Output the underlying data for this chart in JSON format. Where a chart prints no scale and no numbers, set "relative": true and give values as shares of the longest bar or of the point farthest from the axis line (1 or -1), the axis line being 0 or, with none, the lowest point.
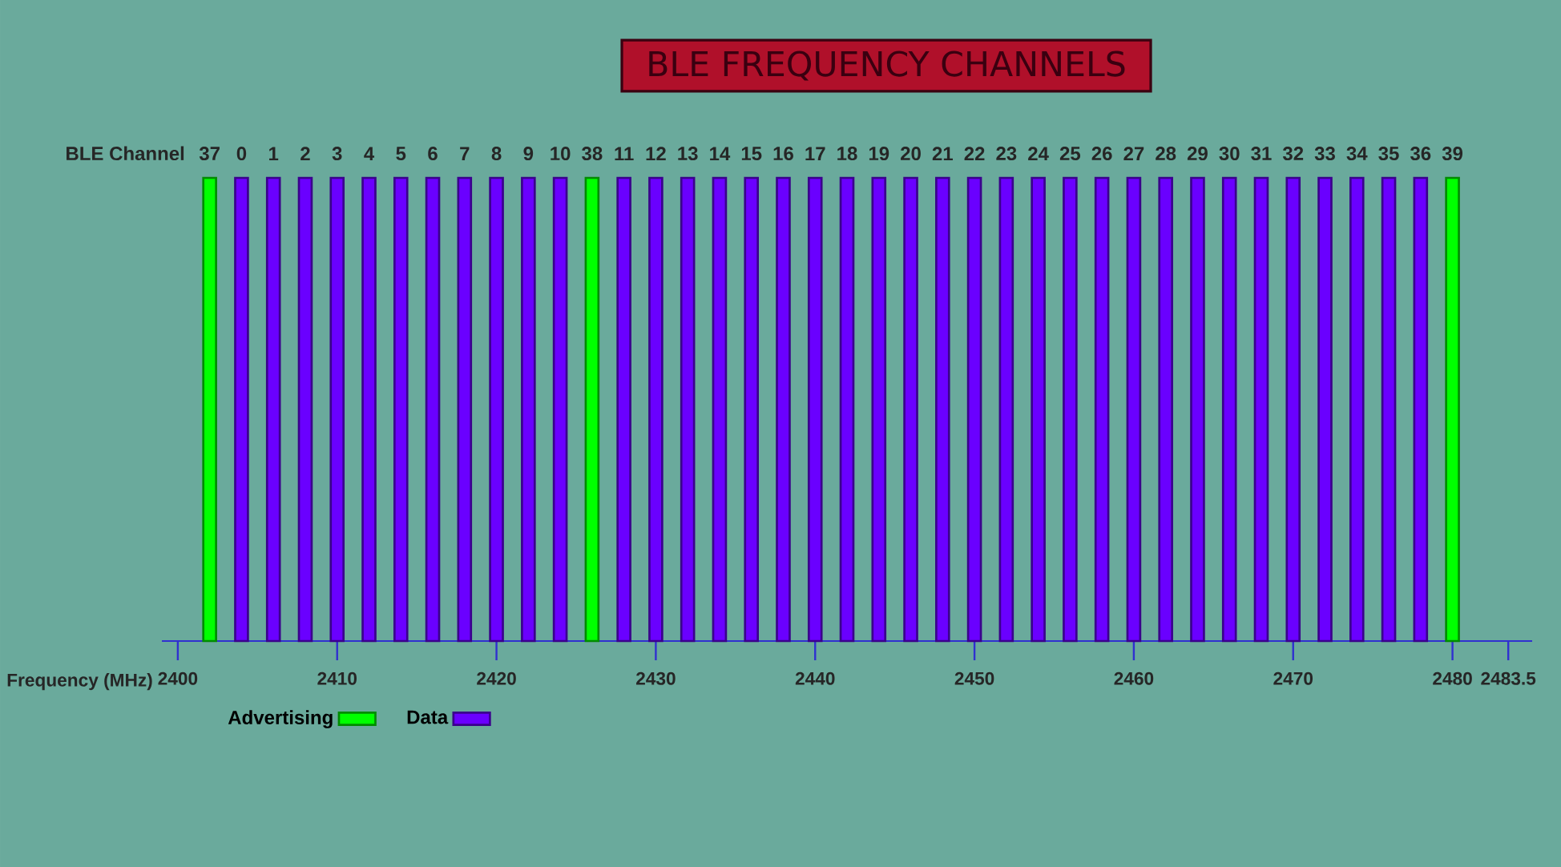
{
  "chart_data": {
    "type": "bar",
    "title": "BLE FREQUENCY CHANNELS",
    "xlabel": "Frequency (MHz)",
    "relative": true,
    "legend": "bottom left",
    "xlim": [
      2399,
      2485
    ],
    "xticks": [
      2400,
      2410,
      2420,
      2430,
      2440,
      2450,
      2460,
      2470,
      2480,
      2483.5
    ],
    "annotations": [
      "BLE Channel",
      {
        "text": "37",
        "x": 2402,
        "y": 1
      },
      {
        "text": "0",
        "x": 2404,
        "y": 1
      },
      {
        "text": "1",
        "x": 2406,
        "y": 1
      },
      {
        "text": "2",
        "x": 2408,
        "y": 1
      },
      {
        "text": "3",
        "x": 2410,
        "y": 1
      },
      {
        "text": "4",
        "x": 2412,
        "y": 1
      },
      {
        "text": "5",
        "x": 2414,
        "y": 1
      },
      {
        "text": "6",
        "x": 2416,
        "y": 1
      },
      {
        "text": "7",
        "x": 2418,
        "y": 1
      },
      {
        "text": "8",
        "x": 2420,
        "y": 1
      },
      {
        "text": "9",
        "x": 2422,
        "y": 1
      },
      {
        "text": "10",
        "x": 2424,
        "y": 1
      },
      {
        "text": "38",
        "x": 2426,
        "y": 1
      },
      {
        "text": "11",
        "x": 2428,
        "y": 1
      },
      {
        "text": "12",
        "x": 2430,
        "y": 1
      },
      {
        "text": "13",
        "x": 2432,
        "y": 1
      },
      {
        "text": "14",
        "x": 2434,
        "y": 1
      },
      {
        "text": "15",
        "x": 2436,
        "y": 1
      },
      {
        "text": "16",
        "x": 2438,
        "y": 1
      },
      {
        "text": "17",
        "x": 2440,
        "y": 1
      },
      {
        "text": "18",
        "x": 2442,
        "y": 1
      },
      {
        "text": "19",
        "x": 2444,
        "y": 1
      },
      {
        "text": "20",
        "x": 2446,
        "y": 1
      },
      {
        "text": "21",
        "x": 2448,
        "y": 1
      },
      {
        "text": "22",
        "x": 2450,
        "y": 1
      },
      {
        "text": "23",
        "x": 2452,
        "y": 1
      },
      {
        "text": "24",
        "x": 2454,
        "y": 1
      },
      {
        "text": "25",
        "x": 2456,
        "y": 1
      },
      {
        "text": "26",
        "x": 2458,
        "y": 1
      },
      {
        "text": "27",
        "x": 2460,
        "y": 1
      },
      {
        "text": "28",
        "x": 2462,
        "y": 1
      },
      {
        "text": "29",
        "x": 2464,
        "y": 1
      },
      {
        "text": "30",
        "x": 2466,
        "y": 1
      },
      {
        "text": "31",
        "x": 2468,
        "y": 1
      },
      {
        "text": "32",
        "x": 2470,
        "y": 1
      },
      {
        "text": "33",
        "x": 2472,
        "y": 1
      },
      {
        "text": "34",
        "x": 2474,
        "y": 1
      },
      {
        "text": "35",
        "x": 2476,
        "y": 1
      },
      {
        "text": "36",
        "x": 2478,
        "y": 1
      },
      {
        "text": "39",
        "x": 2480,
        "y": 1
      }
    ],
    "series": [
      {
        "name": "Advertising",
        "color": "#00ff00",
        "x": [
          2402,
          2426,
          2480
        ],
        "values": [
          1,
          1,
          1
        ]
      },
      {
        "name": "Data",
        "color": "#6a00ff",
        "x": [
          2404,
          2406,
          2408,
          2410,
          2412,
          2414,
          2416,
          2418,
          2420,
          2422,
          2424,
          2428,
          2430,
          2432,
          2434,
          2436,
          2438,
          2440,
          2442,
          2444,
          2446,
          2448,
          2450,
          2452,
          2454,
          2456,
          2458,
          2460,
          2462,
          2464,
          2466,
          2468,
          2470,
          2472,
          2474,
          2476,
          2478
        ],
        "values": [
          1,
          1,
          1,
          1,
          1,
          1,
          1,
          1,
          1,
          1,
          1,
          1,
          1,
          1,
          1,
          1,
          1,
          1,
          1,
          1,
          1,
          1,
          1,
          1,
          1,
          1,
          1,
          1,
          1,
          1,
          1,
          1,
          1,
          1,
          1,
          1,
          1
        ]
      }
    ]
  }
}
